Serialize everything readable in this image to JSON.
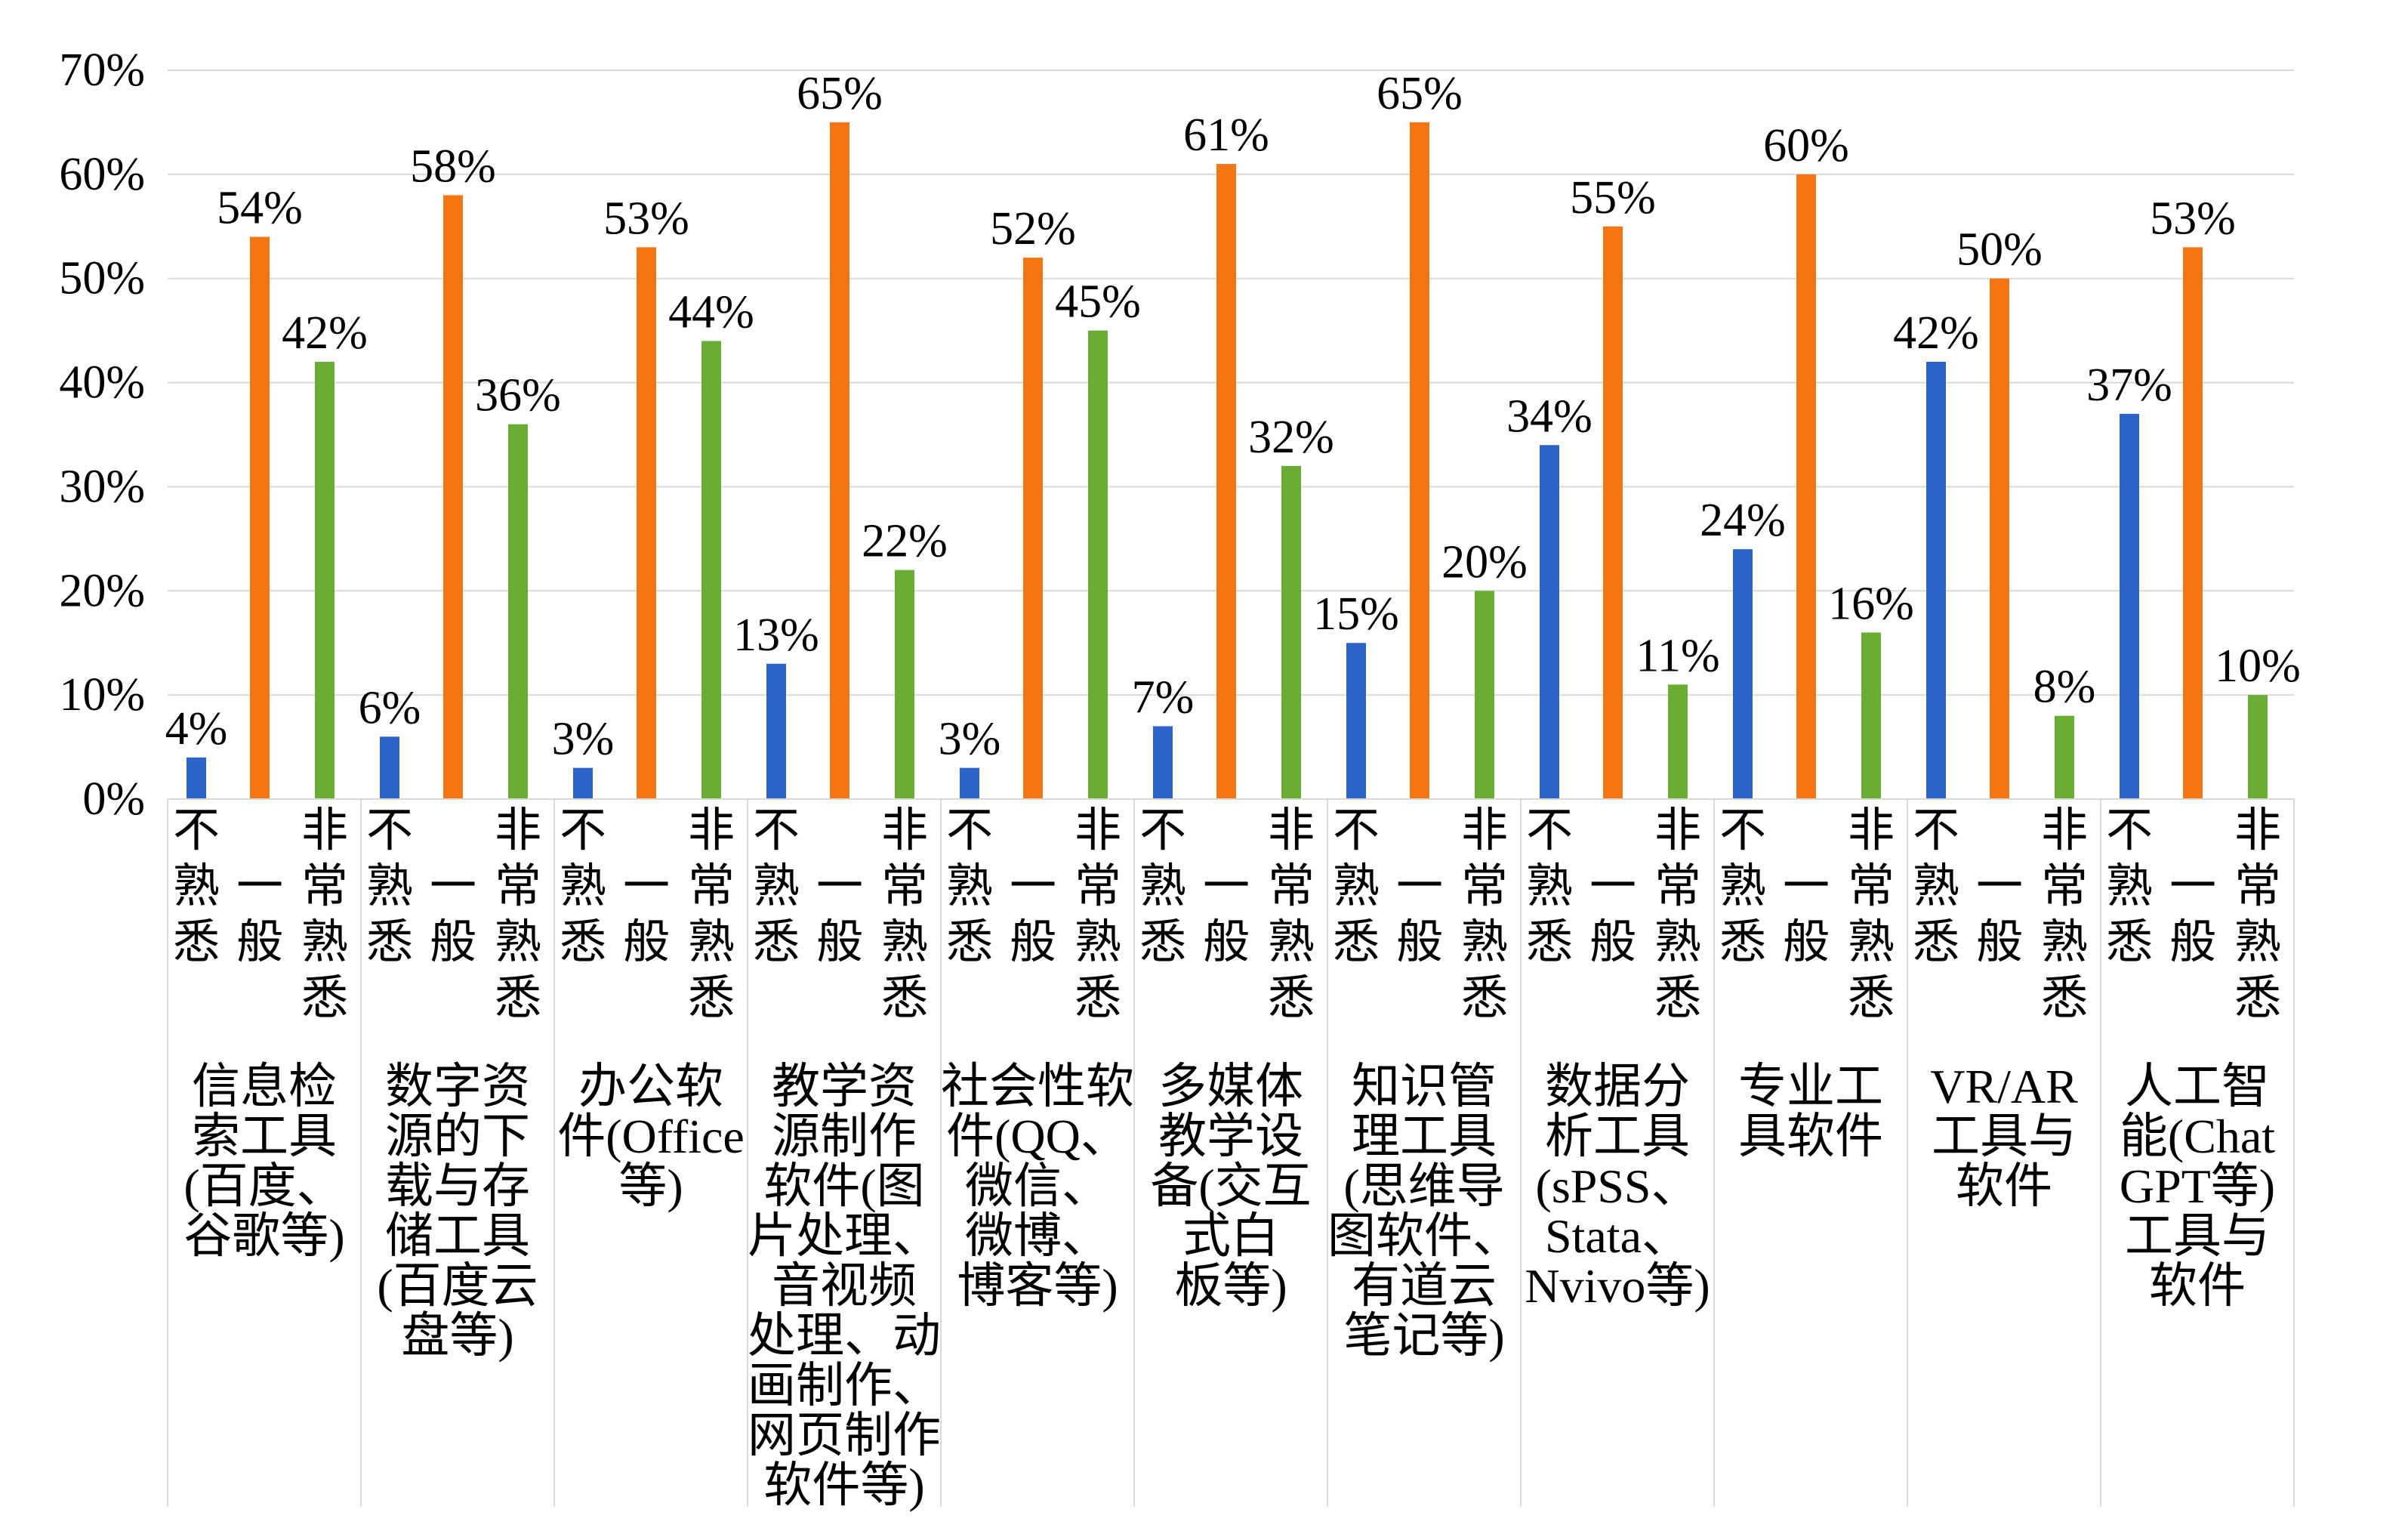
{
  "chart_data": {
    "type": "bar",
    "title": "",
    "xlabel": "",
    "ylabel": "",
    "ylim": [
      0,
      70
    ],
    "ytick_step": 10,
    "ytick_suffix": "%",
    "grid": true,
    "legend": "none",
    "sub_categories": [
      "不熟悉",
      "一般",
      "非常熟悉"
    ],
    "categories": [
      "信息检索工具(百度、谷歌等)",
      "数字资源的下载与存储工具(百度云盘等)",
      "办公软件(Office等)",
      "教学资源制作软件(图片处理、音视频处理、动画制作、网页制作软件等)",
      "社会性软件(QQ、微信、微博、博客等)",
      "多媒体教学设备(交互式白板等)",
      "知识管理工具(思维导图软件、有道云笔记等)",
      "数据分析工具(sPSS、Stata、Nvivo等)",
      "专业工具软件",
      "VR/AR工具与软件",
      "人工智能(ChatGPT等)工具与软件"
    ],
    "category_label_lines": [
      [
        "信息检",
        "索工具",
        "(百度、",
        "谷歌等)"
      ],
      [
        "数字资",
        "源的下",
        "载与存",
        "储工具",
        "(百度云",
        "盘等)"
      ],
      [
        "办公软",
        "件(Office",
        "等)"
      ],
      [
        "教学资",
        "源制作",
        "软件(图",
        "片处理、",
        "音视频",
        "处理、动",
        "画制作、",
        "网页制作",
        "软件等)"
      ],
      [
        "社会性软",
        "件(QQ、",
        "微信、",
        "微博、",
        "博客等)"
      ],
      [
        "多媒体",
        "教学设",
        "备(交互",
        "式白",
        "板等)"
      ],
      [
        "知识管",
        "理工具",
        "(思维导",
        "图软件、",
        "有道云",
        "笔记等)"
      ],
      [
        "数据分",
        "析工具",
        "(sPSS、",
        "Stata、",
        "Nvivo等)"
      ],
      [
        "专业工",
        "具软件"
      ],
      [
        "VR/AR",
        "工具与",
        "软件"
      ],
      [
        "人工智",
        "能(Chat",
        "GPT等)",
        "工具与",
        "软件"
      ]
    ],
    "series": [
      {
        "name": "不熟悉",
        "color": "#2e64c9",
        "values": [
          4,
          6,
          3,
          13,
          3,
          7,
          15,
          34,
          24,
          42,
          37
        ]
      },
      {
        "name": "一般",
        "color": "#f57514",
        "values": [
          54,
          58,
          53,
          65,
          52,
          61,
          65,
          55,
          60,
          50,
          53
        ]
      },
      {
        "name": "非常熟悉",
        "color": "#6aad34",
        "values": [
          42,
          36,
          44,
          22,
          45,
          32,
          20,
          11,
          16,
          8,
          10
        ]
      }
    ]
  }
}
